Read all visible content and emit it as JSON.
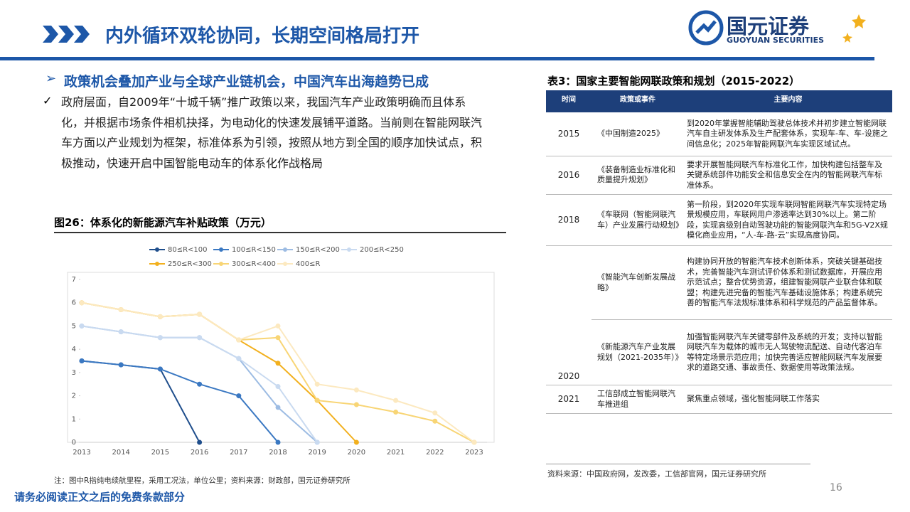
{
  "header": {
    "title": "内外循环双轮协同，长期空间格局打开",
    "logo_name": "国元证券",
    "logo_en": "GUOYUAN SECURITIES"
  },
  "section": {
    "heading": "政策机会叠加产业与全球产业链机会，中国汽车出海趋势已成",
    "paragraph": "政府层面，自2009年“十城千辆”推广政策以来，我国汽车产业政策明确而且体系化，并根据市场条件相机抉择，为电动化的快速发展铺平道路。当前则在智能网联汽车方面以产业规划为框架，标准体系为引领，按照从地方到全国的顺序加快试点，积极推动，快速开启中国智能电动车的体系化作战格局"
  },
  "chart_data": {
    "type": "line",
    "title": "图26：体系化的新能源汽车补贴政策（万元）",
    "categories": [
      "2013",
      "2014",
      "2015",
      "2016",
      "2017",
      "2018",
      "2019",
      "2020",
      "2021",
      "2022",
      "2023"
    ],
    "series": [
      {
        "name": "80≤R<100",
        "color": "#1f4e8c",
        "values": [
          3.5,
          3.33,
          3.15,
          0,
          null,
          null,
          null,
          null,
          null,
          null,
          null
        ]
      },
      {
        "name": "100≤R<150",
        "color": "#3a78c2",
        "values": [
          3.5,
          3.33,
          3.15,
          2.5,
          2.0,
          0,
          null,
          null,
          null,
          null,
          null
        ]
      },
      {
        "name": "150≤R<200",
        "color": "#9dbce3",
        "values": [
          5,
          4.75,
          4.5,
          4.5,
          3.6,
          1.5,
          0,
          null,
          null,
          null,
          null
        ]
      },
      {
        "name": "200≤R<250",
        "color": "#c9daf0",
        "values": [
          5,
          4.75,
          4.5,
          4.5,
          3.6,
          2.4,
          0,
          null,
          null,
          null,
          null
        ]
      },
      {
        "name": "250≤R<300",
        "color": "#f2b01e",
        "values": [
          6,
          5.7,
          5.4,
          5.5,
          4.4,
          3.4,
          1.8,
          0,
          null,
          null,
          null
        ]
      },
      {
        "name": "300≤R<400",
        "color": "#f8d575",
        "values": [
          6,
          5.7,
          5.4,
          5.5,
          4.4,
          4.5,
          1.8,
          1.62,
          1.3,
          0.91,
          0
        ]
      },
      {
        "name": "400≤R",
        "color": "#fce9c0",
        "values": [
          6,
          5.7,
          5.4,
          5.5,
          4.4,
          5.0,
          2.5,
          2.25,
          1.8,
          1.26,
          0
        ]
      }
    ],
    "ylim": [
      0,
      7
    ],
    "yticks": [
      0,
      1,
      2,
      3,
      4,
      5,
      6,
      7
    ],
    "grid": false,
    "note": "注：图中R指纯电续航里程，采用工况法，单位公里；资料来源：财政部，国元证券研究所"
  },
  "table": {
    "title": "表3：国家主要智能网联政策和规划（2015-2022）",
    "columns": [
      "时间",
      "政策或事件",
      "主要内容"
    ],
    "rows": [
      {
        "year": "2015",
        "items": [
          {
            "policy": "《中国制造2025》",
            "content": "到2020年掌握智能辅助驾驶总体技术并初步建立智能网联汽车自主研发体系及生产配套体系，实现车-车、车-设施之间信息化；2025年智能网联汽车实现区域试点。"
          }
        ]
      },
      {
        "year": "2016",
        "items": [
          {
            "policy": "《装备制造业标准化和质量提升规划》",
            "content": "要求开展智能网联汽车标准化工作，加快构建包括整车及关键系统部件功能安全和信息安全在内的智能网联汽车标准体系。"
          }
        ]
      },
      {
        "year": "2018",
        "items": [
          {
            "policy": "《车联网（智能网联汽车）产业发展行动规划》",
            "content": "第一阶段，到2020年实现车联网智能网联汽车实现特定场景规模应用，车联网用户渗透率达到30%以上。第二阶段，实现高级别自动驾驶功能的智能网联汽车和5G-V2X规模化商业应用，“人-车-路-云”实现高度协同。"
          }
        ]
      },
      {
        "year": "2020",
        "items": [
          {
            "policy": "《智能汽车创新发展战略》",
            "content": "构建协同开放的智能汽车技术创新体系，突破关键基础技术，完善智能汽车测试评价体系和测试数据库，开展应用示范试点；整合优势资源，组建智能网联产业联合体和联盟；构建先进完备的智能汽车基础设施体系；构建系统完善的智能汽车法规标准体系和科学规范的产品监督体系。"
          },
          {
            "policy": "《新能源汽车产业发展规划（2021-2035年）》",
            "content": "加强智能网联汽车关键零部件及系统的开发；支持以智能网联汽车为载体的城市无人驾驶物流配送、自动代客泊车等特定场景示范应用；加快完善适应智能网联汽车发展要求的道路交通、事故责任、数据使用等政策法规。"
          }
        ]
      },
      {
        "year": "2021",
        "items": [
          {
            "policy": "工信部成立智能网联汽车推进组",
            "content": "聚焦重点领域，强化智能网联工作落实"
          }
        ]
      }
    ],
    "source": "资料来源：中国政府网，发改委，工信部官网，国元证券研究所"
  },
  "footer": {
    "disclaimer": "请务必阅读正文之后的免费条款部分",
    "page": "16"
  }
}
